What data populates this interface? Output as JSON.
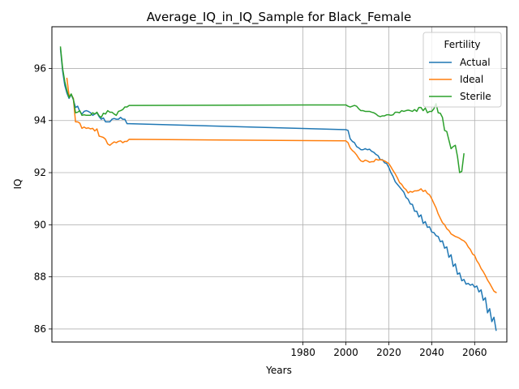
{
  "chart_data": {
    "type": "line",
    "title": "Average_IQ_in_IQ_Sample for Black_Female",
    "xlabel": "Years",
    "ylabel": "IQ",
    "xlim": [
      1863,
      2075
    ],
    "ylim": [
      85.5,
      97.6
    ],
    "xticks": [
      1980,
      2000,
      2020,
      2040,
      2060
    ],
    "yticks": [
      86,
      88,
      90,
      92,
      94,
      96
    ],
    "grid": true,
    "legend": {
      "title": "Fertility",
      "position": "top-right"
    },
    "series": [
      {
        "name": "Actual",
        "color": "#1f77b4",
        "points": [
          [
            1867,
            96.75
          ],
          [
            1868,
            95.9
          ],
          [
            1869,
            95.35
          ],
          [
            1870,
            95.05
          ],
          [
            1871,
            94.85
          ],
          [
            1872,
            95.0
          ],
          [
            1873,
            94.8
          ],
          [
            1874,
            94.5
          ],
          [
            1875,
            94.55
          ],
          [
            1876,
            94.35
          ],
          [
            1877,
            94.25
          ],
          [
            1878,
            94.35
          ],
          [
            1879,
            94.38
          ],
          [
            1880,
            94.35
          ],
          [
            1881,
            94.3
          ],
          [
            1882,
            94.2
          ],
          [
            1883,
            94.25
          ],
          [
            1884,
            94.3
          ],
          [
            1885,
            94.15
          ],
          [
            1886,
            94.05
          ],
          [
            1887,
            94.1
          ],
          [
            1888,
            93.95
          ],
          [
            1889,
            93.95
          ],
          [
            1890,
            93.95
          ],
          [
            1891,
            94.05
          ],
          [
            1892,
            94.08
          ],
          [
            1893,
            94.05
          ],
          [
            1894,
            94.05
          ],
          [
            1895,
            94.12
          ],
          [
            1896,
            94.05
          ],
          [
            1897,
            94.05
          ],
          [
            1898,
            93.88
          ],
          [
            1899,
            93.88
          ],
          [
            2000,
            93.65
          ],
          [
            2001,
            93.62
          ],
          [
            2002,
            93.3
          ],
          [
            2003,
            93.2
          ],
          [
            2004,
            93.15
          ],
          [
            2005,
            93.0
          ],
          [
            2006,
            92.95
          ],
          [
            2007,
            92.88
          ],
          [
            2008,
            92.88
          ],
          [
            2009,
            92.92
          ],
          [
            2010,
            92.88
          ],
          [
            2011,
            92.9
          ],
          [
            2012,
            92.82
          ],
          [
            2013,
            92.78
          ],
          [
            2014,
            92.7
          ],
          [
            2015,
            92.65
          ],
          [
            2016,
            92.5
          ],
          [
            2017,
            92.5
          ],
          [
            2018,
            92.38
          ],
          [
            2019,
            92.35
          ],
          [
            2020,
            92.2
          ],
          [
            2021,
            92.0
          ],
          [
            2022,
            91.85
          ],
          [
            2023,
            91.65
          ],
          [
            2024,
            91.55
          ],
          [
            2025,
            91.45
          ],
          [
            2026,
            91.35
          ],
          [
            2027,
            91.25
          ],
          [
            2028,
            91.05
          ],
          [
            2029,
            90.98
          ],
          [
            2030,
            90.8
          ],
          [
            2031,
            90.78
          ],
          [
            2032,
            90.52
          ],
          [
            2033,
            90.52
          ],
          [
            2034,
            90.3
          ],
          [
            2035,
            90.38
          ],
          [
            2036,
            90.05
          ],
          [
            2037,
            90.12
          ],
          [
            2038,
            89.9
          ],
          [
            2039,
            89.92
          ],
          [
            2040,
            89.72
          ],
          [
            2041,
            89.7
          ],
          [
            2042,
            89.58
          ],
          [
            2043,
            89.55
          ],
          [
            2044,
            89.35
          ],
          [
            2045,
            89.38
          ],
          [
            2046,
            89.1
          ],
          [
            2047,
            89.15
          ],
          [
            2048,
            88.75
          ],
          [
            2049,
            88.85
          ],
          [
            2050,
            88.4
          ],
          [
            2051,
            88.5
          ],
          [
            2052,
            88.1
          ],
          [
            2053,
            88.15
          ],
          [
            2054,
            87.85
          ],
          [
            2055,
            87.9
          ],
          [
            2056,
            87.72
          ],
          [
            2057,
            87.75
          ],
          [
            2058,
            87.68
          ],
          [
            2059,
            87.72
          ],
          [
            2060,
            87.6
          ],
          [
            2061,
            87.65
          ],
          [
            2062,
            87.42
          ],
          [
            2063,
            87.5
          ],
          [
            2064,
            87.1
          ],
          [
            2065,
            87.2
          ],
          [
            2066,
            86.62
          ],
          [
            2067,
            86.78
          ],
          [
            2068,
            86.28
          ],
          [
            2069,
            86.45
          ],
          [
            2070,
            85.95
          ]
        ]
      },
      {
        "name": "Ideal",
        "color": "#ff7f0e",
        "points": [
          [
            1870,
            95.62
          ],
          [
            1871,
            94.95
          ],
          [
            1872,
            95.0
          ],
          [
            1873,
            94.85
          ],
          [
            1874,
            93.95
          ],
          [
            1875,
            93.95
          ],
          [
            1876,
            93.9
          ],
          [
            1877,
            93.7
          ],
          [
            1878,
            93.75
          ],
          [
            1879,
            93.7
          ],
          [
            1880,
            93.72
          ],
          [
            1881,
            93.68
          ],
          [
            1882,
            93.7
          ],
          [
            1883,
            93.6
          ],
          [
            1884,
            93.68
          ],
          [
            1885,
            93.4
          ],
          [
            1886,
            93.38
          ],
          [
            1887,
            93.35
          ],
          [
            1888,
            93.28
          ],
          [
            1889,
            93.1
          ],
          [
            1890,
            93.05
          ],
          [
            1891,
            93.12
          ],
          [
            1892,
            93.18
          ],
          [
            1893,
            93.15
          ],
          [
            1894,
            93.2
          ],
          [
            1895,
            93.22
          ],
          [
            1896,
            93.15
          ],
          [
            1897,
            93.2
          ],
          [
            1898,
            93.2
          ],
          [
            1899,
            93.28
          ],
          [
            2000,
            93.22
          ],
          [
            2001,
            93.15
          ],
          [
            2002,
            92.95
          ],
          [
            2003,
            92.85
          ],
          [
            2004,
            92.78
          ],
          [
            2005,
            92.68
          ],
          [
            2006,
            92.55
          ],
          [
            2007,
            92.45
          ],
          [
            2008,
            92.42
          ],
          [
            2009,
            92.48
          ],
          [
            2010,
            92.45
          ],
          [
            2011,
            92.4
          ],
          [
            2012,
            92.42
          ],
          [
            2013,
            92.42
          ],
          [
            2014,
            92.52
          ],
          [
            2015,
            92.48
          ],
          [
            2016,
            92.5
          ],
          [
            2017,
            92.48
          ],
          [
            2018,
            92.45
          ],
          [
            2019,
            92.4
          ],
          [
            2020,
            92.35
          ],
          [
            2021,
            92.22
          ],
          [
            2022,
            92.08
          ],
          [
            2023,
            91.95
          ],
          [
            2024,
            91.8
          ],
          [
            2025,
            91.62
          ],
          [
            2026,
            91.55
          ],
          [
            2027,
            91.42
          ],
          [
            2028,
            91.35
          ],
          [
            2029,
            91.22
          ],
          [
            2030,
            91.28
          ],
          [
            2031,
            91.25
          ],
          [
            2032,
            91.3
          ],
          [
            2033,
            91.3
          ],
          [
            2034,
            91.32
          ],
          [
            2035,
            91.38
          ],
          [
            2036,
            91.28
          ],
          [
            2037,
            91.32
          ],
          [
            2038,
            91.2
          ],
          [
            2039,
            91.15
          ],
          [
            2040,
            91.0
          ],
          [
            2041,
            90.82
          ],
          [
            2042,
            90.65
          ],
          [
            2043,
            90.42
          ],
          [
            2044,
            90.25
          ],
          [
            2045,
            90.08
          ],
          [
            2046,
            90.0
          ],
          [
            2047,
            89.85
          ],
          [
            2048,
            89.78
          ],
          [
            2049,
            89.65
          ],
          [
            2050,
            89.6
          ],
          [
            2051,
            89.55
          ],
          [
            2052,
            89.52
          ],
          [
            2053,
            89.48
          ],
          [
            2054,
            89.42
          ],
          [
            2055,
            89.38
          ],
          [
            2056,
            89.3
          ],
          [
            2057,
            89.15
          ],
          [
            2058,
            89.05
          ],
          [
            2059,
            88.88
          ],
          [
            2060,
            88.82
          ],
          [
            2061,
            88.62
          ],
          [
            2062,
            88.5
          ],
          [
            2063,
            88.32
          ],
          [
            2064,
            88.2
          ],
          [
            2065,
            88.05
          ],
          [
            2066,
            87.88
          ],
          [
            2067,
            87.75
          ],
          [
            2068,
            87.6
          ],
          [
            2069,
            87.45
          ],
          [
            2070,
            87.4
          ]
        ]
      },
      {
        "name": "Sterile",
        "color": "#2ca02c",
        "points": [
          [
            1867,
            96.82
          ],
          [
            1868,
            96.0
          ],
          [
            1869,
            95.5
          ],
          [
            1870,
            95.15
          ],
          [
            1871,
            94.88
          ],
          [
            1872,
            95.02
          ],
          [
            1873,
            94.82
          ],
          [
            1874,
            94.3
          ],
          [
            1875,
            94.32
          ],
          [
            1876,
            94.38
          ],
          [
            1877,
            94.2
          ],
          [
            1878,
            94.22
          ],
          [
            1879,
            94.2
          ],
          [
            1880,
            94.2
          ],
          [
            1881,
            94.2
          ],
          [
            1882,
            94.3
          ],
          [
            1883,
            94.25
          ],
          [
            1884,
            94.32
          ],
          [
            1885,
            94.18
          ],
          [
            1886,
            94.12
          ],
          [
            1887,
            94.28
          ],
          [
            1888,
            94.25
          ],
          [
            1889,
            94.38
          ],
          [
            1890,
            94.32
          ],
          [
            1891,
            94.32
          ],
          [
            1892,
            94.25
          ],
          [
            1893,
            94.2
          ],
          [
            1894,
            94.35
          ],
          [
            1895,
            94.38
          ],
          [
            1896,
            94.42
          ],
          [
            1897,
            94.52
          ],
          [
            1898,
            94.52
          ],
          [
            1899,
            94.58
          ],
          [
            2000,
            94.6
          ],
          [
            2001,
            94.55
          ],
          [
            2002,
            94.52
          ],
          [
            2003,
            94.55
          ],
          [
            2004,
            94.58
          ],
          [
            2005,
            94.55
          ],
          [
            2006,
            94.45
          ],
          [
            2007,
            94.38
          ],
          [
            2008,
            94.38
          ],
          [
            2009,
            94.35
          ],
          [
            2010,
            94.35
          ],
          [
            2011,
            94.35
          ],
          [
            2012,
            94.32
          ],
          [
            2013,
            94.3
          ],
          [
            2014,
            94.25
          ],
          [
            2015,
            94.18
          ],
          [
            2016,
            94.15
          ],
          [
            2017,
            94.18
          ],
          [
            2018,
            94.18
          ],
          [
            2019,
            94.22
          ],
          [
            2020,
            94.22
          ],
          [
            2021,
            94.2
          ],
          [
            2022,
            94.22
          ],
          [
            2023,
            94.32
          ],
          [
            2024,
            94.32
          ],
          [
            2025,
            94.3
          ],
          [
            2026,
            94.38
          ],
          [
            2027,
            94.35
          ],
          [
            2028,
            94.38
          ],
          [
            2029,
            94.4
          ],
          [
            2030,
            94.38
          ],
          [
            2031,
            94.35
          ],
          [
            2032,
            94.42
          ],
          [
            2033,
            94.35
          ],
          [
            2034,
            94.5
          ],
          [
            2035,
            94.5
          ],
          [
            2036,
            94.38
          ],
          [
            2037,
            94.48
          ],
          [
            2038,
            94.3
          ],
          [
            2039,
            94.35
          ],
          [
            2040,
            94.35
          ],
          [
            2041,
            94.45
          ],
          [
            2042,
            94.65
          ],
          [
            2043,
            94.3
          ],
          [
            2044,
            94.28
          ],
          [
            2045,
            94.12
          ],
          [
            2046,
            93.62
          ],
          [
            2047,
            93.58
          ],
          [
            2048,
            93.25
          ],
          [
            2049,
            92.92
          ],
          [
            2050,
            93.0
          ],
          [
            2051,
            93.05
          ],
          [
            2052,
            92.62
          ],
          [
            2053,
            92.0
          ],
          [
            2054,
            92.05
          ],
          [
            2055,
            92.72
          ]
        ]
      }
    ]
  }
}
